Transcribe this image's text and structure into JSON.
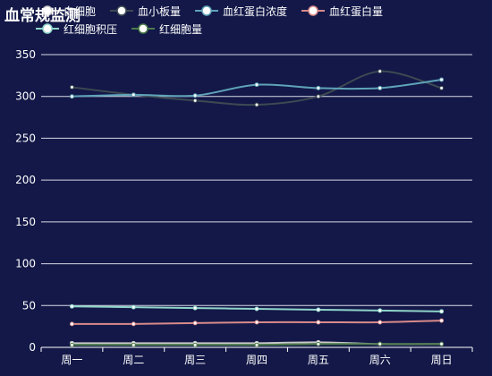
{
  "chart_data": {
    "type": "line",
    "title": "血常规监测",
    "categories": [
      "周一",
      "周二",
      "周三",
      "周四",
      "周五",
      "周六",
      "周日"
    ],
    "ylim": [
      0,
      350
    ],
    "yticks": [
      0,
      50,
      100,
      150,
      200,
      250,
      300,
      350
    ],
    "grid": true,
    "legend_position": "top",
    "series": [
      {
        "name": "白细胞",
        "color": "#c9c9c9",
        "values": [
          5,
          5,
          5,
          5,
          6,
          4,
          4
        ]
      },
      {
        "name": "血小板量",
        "color": "#3d4a52",
        "values": [
          311,
          302,
          295,
          290,
          300,
          330,
          310
        ]
      },
      {
        "name": "血红蛋白浓度",
        "color": "#5fa3b8",
        "values": [
          300,
          302,
          301,
          314,
          310,
          310,
          320
        ]
      },
      {
        "name": "血红蛋白量",
        "color": "#d98a8a",
        "values": [
          28,
          28,
          29,
          30,
          30,
          30,
          32
        ]
      },
      {
        "name": "红细胞积压",
        "color": "#8fd3c9",
        "values": [
          49,
          48,
          47,
          46,
          45,
          44,
          43
        ]
      },
      {
        "name": "红细胞量",
        "color": "#4b7a4a",
        "values": [
          3,
          3,
          3,
          3,
          4,
          4,
          4
        ]
      }
    ]
  }
}
